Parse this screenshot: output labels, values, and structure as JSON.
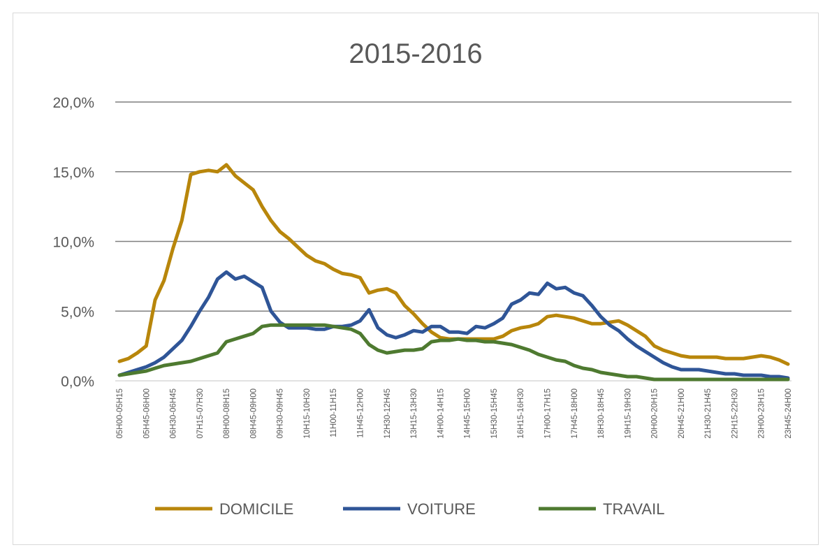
{
  "chart_data": {
    "type": "line",
    "title": "2015-2016",
    "xlabel": "",
    "ylabel": "",
    "ylim": [
      0,
      20
    ],
    "y_ticks": [
      "0,0%",
      "5,0%",
      "10,0%",
      "15,0%",
      "20,0%"
    ],
    "y_tick_values": [
      0,
      5,
      10,
      15,
      20
    ],
    "grid": true,
    "legend_position": "bottom",
    "x_tick_labels": [
      "05H00-05H15",
      "05H45-06H00",
      "06H30-06H45",
      "07H15-07H30",
      "08H00-08H15",
      "08H45-09H00",
      "09H30-09H45",
      "10H15-10H30",
      "11H00-11H15",
      "11H45-12H00",
      "12H30-12H45",
      "13H15-13H30",
      "14H00-14H15",
      "14H45-15H00",
      "15H30-15H45",
      "16H15-16H30",
      "17H00-17H15",
      "17H45-18H00",
      "18H30-18H45",
      "19H15-19H30",
      "20H00-20H15",
      "20H45-21H00",
      "21H30-21H45",
      "22H15-22H30",
      "23H00-23H15",
      "23H45-24H00"
    ],
    "x_tick_every": 3,
    "series": [
      {
        "name": "DOMICILE",
        "color": "#B8860B",
        "values": [
          1.4,
          1.6,
          2.0,
          2.5,
          5.8,
          7.2,
          9.5,
          11.5,
          14.8,
          15.0,
          15.1,
          15.0,
          15.5,
          14.7,
          14.2,
          13.7,
          12.5,
          11.5,
          10.7,
          10.2,
          9.6,
          9.0,
          8.6,
          8.4,
          8.0,
          7.7,
          7.6,
          7.4,
          6.3,
          6.5,
          6.6,
          6.3,
          5.4,
          4.8,
          4.1,
          3.5,
          3.1,
          3.0,
          3.0,
          3.0,
          3.0,
          3.0,
          3.0,
          3.2,
          3.6,
          3.8,
          3.9,
          4.1,
          4.6,
          4.7,
          4.6,
          4.5,
          4.3,
          4.1,
          4.1,
          4.2,
          4.3,
          4.0,
          3.6,
          3.2,
          2.5,
          2.2,
          2.0,
          1.8,
          1.7,
          1.7,
          1.7,
          1.7,
          1.6,
          1.6,
          1.6,
          1.7,
          1.8,
          1.7,
          1.5,
          1.2
        ]
      },
      {
        "name": "VOITURE",
        "color": "#2F5597",
        "values": [
          0.4,
          0.6,
          0.8,
          1.0,
          1.3,
          1.7,
          2.3,
          2.9,
          3.9,
          5.0,
          6.0,
          7.3,
          7.8,
          7.3,
          7.5,
          7.1,
          6.7,
          5.0,
          4.2,
          3.8,
          3.8,
          3.8,
          3.7,
          3.7,
          3.9,
          3.9,
          4.0,
          4.3,
          5.1,
          3.8,
          3.3,
          3.1,
          3.3,
          3.6,
          3.5,
          3.9,
          3.9,
          3.5,
          3.5,
          3.4,
          3.9,
          3.8,
          4.1,
          4.5,
          5.5,
          5.8,
          6.3,
          6.2,
          7.0,
          6.6,
          6.7,
          6.3,
          6.1,
          5.4,
          4.6,
          4.0,
          3.6,
          3.0,
          2.5,
          2.1,
          1.7,
          1.3,
          1.0,
          0.8,
          0.8,
          0.8,
          0.7,
          0.6,
          0.5,
          0.5,
          0.4,
          0.4,
          0.4,
          0.3,
          0.3,
          0.2
        ]
      },
      {
        "name": "TRAVAIL",
        "color": "#4E7A30",
        "values": [
          0.4,
          0.5,
          0.6,
          0.7,
          0.9,
          1.1,
          1.2,
          1.3,
          1.4,
          1.6,
          1.8,
          2.0,
          2.8,
          3.0,
          3.2,
          3.4,
          3.9,
          4.0,
          4.0,
          4.0,
          4.0,
          4.0,
          4.0,
          4.0,
          3.9,
          3.8,
          3.7,
          3.4,
          2.6,
          2.2,
          2.0,
          2.1,
          2.2,
          2.2,
          2.3,
          2.8,
          2.9,
          2.9,
          3.0,
          2.9,
          2.9,
          2.8,
          2.8,
          2.7,
          2.6,
          2.4,
          2.2,
          1.9,
          1.7,
          1.5,
          1.4,
          1.1,
          0.9,
          0.8,
          0.6,
          0.5,
          0.4,
          0.3,
          0.3,
          0.2,
          0.1,
          0.1,
          0.1,
          0.1,
          0.1,
          0.1,
          0.1,
          0.1,
          0.1,
          0.1,
          0.1,
          0.1,
          0.1,
          0.1,
          0.1,
          0.1
        ]
      }
    ]
  }
}
